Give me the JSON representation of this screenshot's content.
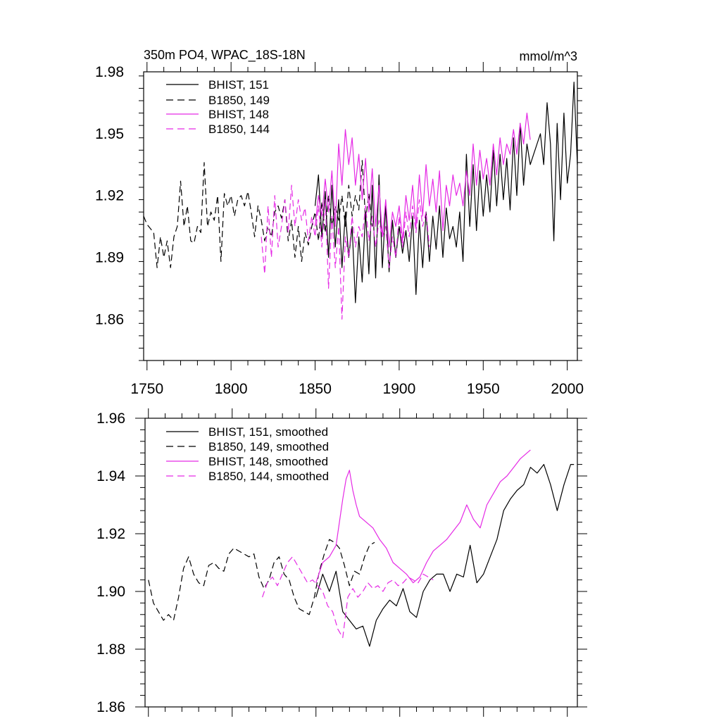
{
  "chart_data": [
    {
      "type": "line",
      "title": "350m PO4, WPAC_18S-18N",
      "units": "mmol/m^3",
      "xlim": [
        1748,
        2006
      ],
      "ylim": [
        1.84,
        1.98
      ],
      "xticks": [
        1750,
        1800,
        1850,
        1900,
        1950,
        2000
      ],
      "xtick_labels": [
        "1750",
        "1800",
        "1850",
        "1900",
        "1950",
        "2000"
      ],
      "yticks": [
        1.86,
        1.89,
        1.92,
        1.95,
        1.98
      ],
      "ytick_labels": [
        "1.86",
        "1.89",
        "1.92",
        "1.95",
        "1.98"
      ],
      "series": [
        {
          "name": "BHIST, 151",
          "color": "#000000",
          "dash": false,
          "x": [
            1850,
            1852,
            1854,
            1856,
            1858,
            1860,
            1862,
            1864,
            1866,
            1868,
            1870,
            1872,
            1874,
            1876,
            1878,
            1880,
            1882,
            1884,
            1886,
            1888,
            1890,
            1892,
            1894,
            1896,
            1898,
            1900,
            1902,
            1904,
            1906,
            1908,
            1910,
            1912,
            1914,
            1916,
            1918,
            1920,
            1922,
            1924,
            1926,
            1928,
            1930,
            1932,
            1934,
            1936,
            1938,
            1940,
            1942,
            1944,
            1946,
            1948,
            1950,
            1952,
            1954,
            1956,
            1958,
            1960,
            1962,
            1964,
            1966,
            1968,
            1970,
            1972,
            1974,
            1976,
            1978,
            1980,
            1982,
            1984,
            1986,
            1988,
            1990,
            1992,
            1994,
            1996,
            1998,
            2000,
            2002,
            2004,
            2006
          ],
          "y": [
            1.915,
            1.93,
            1.9,
            1.922,
            1.89,
            1.925,
            1.895,
            1.918,
            1.885,
            1.912,
            1.89,
            1.905,
            1.868,
            1.9,
            1.878,
            1.912,
            1.882,
            1.925,
            1.88,
            1.93,
            1.885,
            1.915,
            1.883,
            1.908,
            1.89,
            1.905,
            1.892,
            1.903,
            1.888,
            1.91,
            1.872,
            1.908,
            1.885,
            1.912,
            1.888,
            1.91,
            1.894,
            1.915,
            1.89,
            1.914,
            1.899,
            1.905,
            1.895,
            1.912,
            1.888,
            1.94,
            1.905,
            1.935,
            1.903,
            1.932,
            1.91,
            1.93,
            1.912,
            1.942,
            1.915,
            1.94,
            1.918,
            1.938,
            1.913,
            1.948,
            1.92,
            1.955,
            1.925,
            1.945,
            1.935,
            1.94,
            1.945,
            1.95,
            1.935,
            1.965,
            1.945,
            1.898,
            1.955,
            1.918,
            1.96,
            1.926,
            1.94,
            1.975,
            1.935
          ]
        },
        {
          "name": "B1850, 149",
          "color": "#000000",
          "dash": true,
          "x": [
            1748,
            1750,
            1752,
            1754,
            1756,
            1758,
            1760,
            1762,
            1764,
            1766,
            1768,
            1770,
            1772,
            1774,
            1776,
            1778,
            1780,
            1782,
            1784,
            1786,
            1788,
            1790,
            1792,
            1794,
            1796,
            1798,
            1800,
            1802,
            1804,
            1806,
            1808,
            1810,
            1812,
            1814,
            1816,
            1818,
            1820,
            1822,
            1824,
            1826,
            1828,
            1830,
            1832,
            1834,
            1836,
            1838,
            1840,
            1842,
            1844,
            1846,
            1848,
            1850,
            1852,
            1854,
            1856,
            1858,
            1860,
            1862,
            1864,
            1866,
            1868,
            1870,
            1872,
            1874,
            1876,
            1878,
            1880,
            1882,
            1884
          ],
          "y": [
            1.91,
            1.906,
            1.904,
            1.902,
            1.885,
            1.9,
            1.89,
            1.898,
            1.885,
            1.9,
            1.905,
            1.927,
            1.905,
            1.915,
            1.898,
            1.897,
            1.905,
            1.902,
            1.936,
            1.905,
            1.912,
            1.908,
            1.92,
            1.888,
            1.921,
            1.915,
            1.92,
            1.91,
            1.918,
            1.92,
            1.915,
            1.922,
            1.912,
            1.9,
            1.915,
            1.908,
            1.898,
            1.905,
            1.9,
            1.912,
            1.915,
            1.909,
            1.918,
            1.898,
            1.908,
            1.89,
            1.905,
            1.888,
            1.902,
            1.896,
            1.905,
            1.912,
            1.898,
            1.917,
            1.902,
            1.92,
            1.905,
            1.915,
            1.908,
            1.92,
            1.905,
            1.925,
            1.91,
            1.92,
            1.913,
            1.937,
            1.908,
            1.921,
            1.905
          ]
        },
        {
          "name": "BHIST, 148",
          "color": "#e52ae5",
          "dash": false,
          "x": [
            1850,
            1852,
            1854,
            1856,
            1858,
            1860,
            1862,
            1864,
            1866,
            1868,
            1870,
            1872,
            1874,
            1876,
            1878,
            1880,
            1882,
            1884,
            1886,
            1888,
            1890,
            1892,
            1894,
            1896,
            1898,
            1900,
            1902,
            1904,
            1906,
            1908,
            1910,
            1912,
            1914,
            1916,
            1918,
            1920,
            1922,
            1924,
            1926,
            1928,
            1930,
            1932,
            1934,
            1936,
            1938,
            1940,
            1942,
            1944,
            1946,
            1948,
            1950,
            1952,
            1954,
            1956,
            1958,
            1960,
            1962,
            1964,
            1966,
            1968,
            1970,
            1972,
            1974,
            1976,
            1978
          ],
          "y": [
            1.905,
            1.92,
            1.91,
            1.928,
            1.912,
            1.932,
            1.905,
            1.945,
            1.925,
            1.952,
            1.935,
            1.948,
            1.925,
            1.94,
            1.918,
            1.938,
            1.912,
            1.933,
            1.905,
            1.925,
            1.9,
            1.918,
            1.895,
            1.912,
            1.905,
            1.915,
            1.898,
            1.92,
            1.908,
            1.925,
            1.905,
            1.93,
            1.91,
            1.935,
            1.915,
            1.928,
            1.912,
            1.932,
            1.903,
            1.925,
            1.915,
            1.93,
            1.92,
            1.926,
            1.915,
            1.932,
            1.92,
            1.945,
            1.925,
            1.942,
            1.928,
            1.938,
            1.925,
            1.945,
            1.93,
            1.948,
            1.935,
            1.945,
            1.94,
            1.952,
            1.94,
            1.955,
            1.945,
            1.96,
            1.947
          ]
        },
        {
          "name": "B1850, 144",
          "color": "#e52ae5",
          "dash": true,
          "x": [
            1818,
            1820,
            1822,
            1824,
            1826,
            1828,
            1830,
            1832,
            1834,
            1836,
            1838,
            1840,
            1842,
            1844,
            1846,
            1848,
            1850,
            1852,
            1854,
            1856,
            1858,
            1860,
            1862,
            1864,
            1866,
            1868,
            1870,
            1872,
            1874,
            1876,
            1878,
            1880,
            1882,
            1884,
            1886,
            1888,
            1890,
            1892,
            1894,
            1896,
            1898,
            1900,
            1902,
            1904,
            1906,
            1908,
            1910,
            1912,
            1914,
            1916,
            1918
          ],
          "y": [
            1.9,
            1.882,
            1.915,
            1.89,
            1.92,
            1.895,
            1.905,
            1.918,
            1.902,
            1.925,
            1.905,
            1.918,
            1.908,
            1.914,
            1.898,
            1.91,
            1.9,
            1.915,
            1.895,
            1.918,
            1.875,
            1.91,
            1.885,
            1.905,
            1.86,
            1.9,
            1.89,
            1.91,
            1.895,
            1.905,
            1.9,
            1.915,
            1.898,
            1.91,
            1.895,
            1.908,
            1.9,
            1.905,
            1.885,
            1.9,
            1.89,
            1.91,
            1.895,
            1.912,
            1.9,
            1.915,
            1.902,
            1.918,
            1.905,
            1.912,
            1.895
          ]
        }
      ]
    },
    {
      "type": "line",
      "title": "",
      "xlim": [
        1748,
        2006
      ],
      "ylim": [
        1.86,
        1.96
      ],
      "yticks": [
        1.86,
        1.88,
        1.9,
        1.92,
        1.94,
        1.96
      ],
      "ytick_labels": [
        "1.86",
        "1.88",
        "1.90",
        "1.92",
        "1.94",
        "1.96"
      ],
      "series": [
        {
          "name": "BHIST, 151, smoothed",
          "color": "#000000",
          "dash": false,
          "x": [
            1850,
            1854,
            1858,
            1862,
            1866,
            1870,
            1874,
            1878,
            1882,
            1886,
            1890,
            1894,
            1898,
            1902,
            1906,
            1910,
            1914,
            1918,
            1922,
            1926,
            1930,
            1934,
            1938,
            1942,
            1946,
            1950,
            1954,
            1958,
            1962,
            1966,
            1970,
            1974,
            1978,
            1982,
            1986,
            1990,
            1994,
            1998,
            2002,
            2004
          ],
          "y": [
            1.898,
            1.906,
            1.9,
            1.907,
            1.893,
            1.89,
            1.887,
            1.888,
            1.881,
            1.89,
            1.894,
            1.897,
            1.895,
            1.901,
            1.893,
            1.891,
            1.9,
            1.904,
            1.906,
            1.906,
            1.9,
            1.906,
            1.905,
            1.916,
            1.903,
            1.906,
            1.912,
            1.918,
            1.928,
            1.932,
            1.935,
            1.937,
            1.943,
            1.941,
            1.944,
            1.937,
            1.928,
            1.937,
            1.944,
            1.944
          ]
        },
        {
          "name": "B1850, 149, smoothed",
          "color": "#000000",
          "dash": true,
          "x": [
            1750,
            1753,
            1756,
            1759,
            1762,
            1765,
            1768,
            1771,
            1774,
            1777,
            1780,
            1783,
            1786,
            1789,
            1792,
            1795,
            1798,
            1801,
            1804,
            1807,
            1810,
            1813,
            1816,
            1819,
            1822,
            1825,
            1828,
            1831,
            1834,
            1837,
            1840,
            1843,
            1846,
            1849,
            1852,
            1855,
            1858,
            1861,
            1864,
            1867,
            1870,
            1873,
            1876,
            1879,
            1882,
            1885
          ],
          "y": [
            1.904,
            1.896,
            1.893,
            1.89,
            1.892,
            1.89,
            1.898,
            1.908,
            1.912,
            1.906,
            1.903,
            1.902,
            1.909,
            1.91,
            1.908,
            1.907,
            1.913,
            1.915,
            1.914,
            1.913,
            1.912,
            1.913,
            1.905,
            1.901,
            1.904,
            1.91,
            1.912,
            1.906,
            1.904,
            1.898,
            1.894,
            1.893,
            1.892,
            1.898,
            1.907,
            1.913,
            1.918,
            1.917,
            1.915,
            1.909,
            1.902,
            1.907,
            1.906,
            1.912,
            1.916,
            1.917
          ]
        },
        {
          "name": "BHIST, 148, smoothed",
          "color": "#e52ae5",
          "dash": false,
          "x": [
            1850,
            1854,
            1858,
            1862,
            1866,
            1868,
            1870,
            1872,
            1874,
            1876,
            1880,
            1884,
            1888,
            1892,
            1896,
            1900,
            1904,
            1908,
            1912,
            1916,
            1920,
            1924,
            1928,
            1932,
            1936,
            1940,
            1944,
            1948,
            1952,
            1956,
            1960,
            1964,
            1968,
            1972,
            1976,
            1978
          ],
          "y": [
            1.903,
            1.91,
            1.912,
            1.916,
            1.932,
            1.939,
            1.942,
            1.935,
            1.93,
            1.926,
            1.924,
            1.922,
            1.918,
            1.915,
            1.91,
            1.908,
            1.906,
            1.903,
            1.905,
            1.91,
            1.914,
            1.916,
            1.918,
            1.921,
            1.924,
            1.93,
            1.925,
            1.922,
            1.93,
            1.934,
            1.938,
            1.94,
            1.943,
            1.946,
            1.948,
            1.949
          ]
        },
        {
          "name": "B1850, 144, smoothed",
          "color": "#e52ae5",
          "dash": true,
          "x": [
            1818,
            1821,
            1824,
            1827,
            1830,
            1833,
            1836,
            1839,
            1842,
            1845,
            1848,
            1851,
            1854,
            1857,
            1860,
            1863,
            1866,
            1869,
            1872,
            1875,
            1878,
            1881,
            1884,
            1887,
            1890,
            1893,
            1896,
            1899,
            1902,
            1905,
            1908,
            1911,
            1914,
            1917,
            1920
          ],
          "y": [
            1.898,
            1.903,
            1.905,
            1.902,
            1.906,
            1.91,
            1.912,
            1.909,
            1.906,
            1.903,
            1.904,
            1.902,
            1.9,
            1.895,
            1.893,
            1.887,
            1.884,
            1.898,
            1.901,
            1.898,
            1.9,
            1.903,
            1.901,
            1.902,
            1.9,
            1.903,
            1.904,
            1.902,
            1.903,
            1.905,
            1.904,
            1.903,
            1.906,
            1.905,
            1.904
          ]
        }
      ]
    }
  ]
}
